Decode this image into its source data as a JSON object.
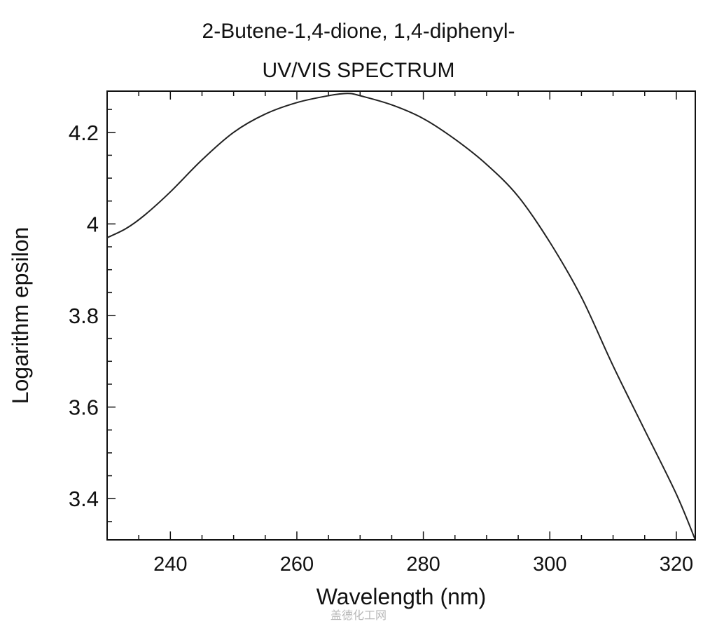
{
  "chart_data": {
    "type": "line",
    "title": "2-Butene-1,4-dione, 1,4-diphenyl-",
    "subtitle": "UV/VIS SPECTRUM",
    "xlabel": "Wavelength (nm)",
    "ylabel": "Logarithm epsilon",
    "xlim": [
      230,
      323
    ],
    "ylim": [
      3.31,
      4.29
    ],
    "x_ticks": [
      240,
      260,
      280,
      300,
      320
    ],
    "y_ticks": [
      3.4,
      3.6,
      3.8,
      4,
      4.2
    ],
    "x_tick_labels": [
      "240",
      "260",
      "280",
      "300",
      "320"
    ],
    "y_tick_labels": [
      "3.4",
      "3.6",
      "3.8",
      "4",
      "4.2"
    ],
    "grid": false,
    "series": [
      {
        "x": [
          230,
          233,
          236,
          240,
          245,
          250,
          255,
          260,
          265,
          268,
          270,
          275,
          280,
          285,
          290,
          295,
          300,
          305,
          310,
          315,
          320,
          323
        ],
        "values": [
          3.97,
          3.99,
          4.02,
          4.07,
          4.14,
          4.2,
          4.24,
          4.265,
          4.28,
          4.285,
          4.28,
          4.26,
          4.23,
          4.185,
          4.13,
          4.06,
          3.96,
          3.84,
          3.69,
          3.55,
          3.41,
          3.31
        ]
      }
    ],
    "line_color": "#222222"
  },
  "watermark": "盖德化工网"
}
